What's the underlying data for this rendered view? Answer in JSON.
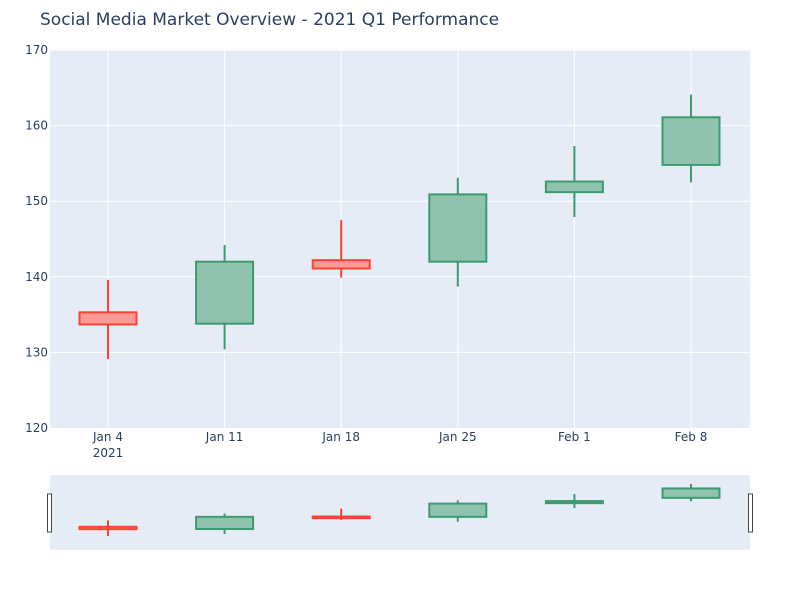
{
  "chart_data": {
    "type": "candlestick",
    "title": "Social Media Market Overview - 2021 Q1 Performance",
    "xlabel": "",
    "ylabel": "",
    "ylim": [
      120,
      170
    ],
    "y_ticks": [
      120,
      130,
      140,
      150,
      160,
      170
    ],
    "x_tick_labels": [
      "Jan 4",
      "Jan 11",
      "Jan 18",
      "Jan 25",
      "Feb 1",
      "Feb 8"
    ],
    "x_tick_sublabel": "2021",
    "grid": true,
    "rangeslider": true,
    "colors": {
      "increasing_line": "#3d9970",
      "increasing_fill": "#8fc3ae",
      "decreasing_line": "#ff4136",
      "decreasing_fill": "#f99a93",
      "plot_bg": "#e5ecf6",
      "grid": "#ffffff",
      "text": "#2a3f5f"
    },
    "candles": [
      {
        "x": "Jan 4",
        "open": 135.3,
        "high": 139.6,
        "low": 129.1,
        "close": 133.7
      },
      {
        "x": "Jan 11",
        "open": 133.8,
        "high": 144.2,
        "low": 130.4,
        "close": 142.0
      },
      {
        "x": "Jan 18",
        "open": 142.2,
        "high": 147.5,
        "low": 139.9,
        "close": 141.1
      },
      {
        "x": "Jan 25",
        "open": 142.0,
        "high": 153.1,
        "low": 138.7,
        "close": 150.9
      },
      {
        "x": "Feb 1",
        "open": 151.2,
        "high": 157.3,
        "low": 147.9,
        "close": 152.6
      },
      {
        "x": "Feb 8",
        "open": 154.8,
        "high": 164.1,
        "low": 152.5,
        "close": 161.1
      }
    ]
  }
}
